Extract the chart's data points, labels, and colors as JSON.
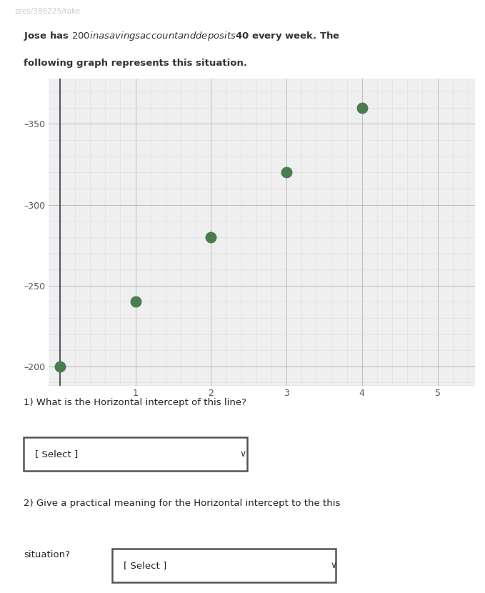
{
  "points_x": [
    0,
    1,
    2,
    3,
    4
  ],
  "points_y": [
    200,
    240,
    280,
    320,
    360
  ],
  "point_color": "#4a7c4e",
  "point_size": 110,
  "xlim": [
    -0.15,
    5.5
  ],
  "ylim": [
    188,
    378
  ],
  "xticks": [
    1,
    2,
    3,
    4,
    5
  ],
  "yticks": [
    200,
    250,
    300,
    350
  ],
  "ytick_labels": [
    "–200",
    "–250",
    "–300",
    "–350"
  ],
  "xtick_labels": [
    "1",
    "2",
    "3",
    "4",
    "5"
  ],
  "grid_major_color": "#bbbbbb",
  "grid_minor_color": "#dddddd",
  "axis_color": "#555566",
  "bg_color": "#efefef",
  "header_text": "zzes/386225/take",
  "title_line1": "Jose has $200 in a savings account and deposits $40 every week. The",
  "title_line2": "following graph represents this situation.",
  "q1_text": "1) What is the Horizontal intercept of this line?",
  "q1_select": "[ Select ]",
  "q2_text": "2) Give a practical meaning for the Horizontal intercept to the this",
  "q2_situation": "situation?",
  "q2_select": "[ Select ]",
  "text_color": "#222222",
  "header_color": "#cccccc",
  "header_bg": "#2a2a2a",
  "title_color": "#333333"
}
